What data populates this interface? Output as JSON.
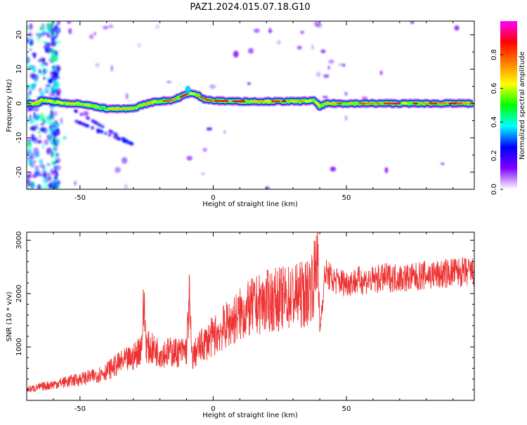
{
  "title": "PAZ1.2024.015.07.18.G10",
  "chart_data": [
    {
      "type": "heatmap",
      "xlabel": "Height of straight line (km)",
      "ylabel": "Frequency (Hz)",
      "xlim": [
        -70,
        98
      ],
      "ylim": [
        -25,
        24
      ],
      "xticks": [
        -50,
        0,
        50
      ],
      "yticks": [
        -20,
        -10,
        0,
        10,
        20
      ],
      "colorbar": {
        "label": "Normalized spectral amplitude",
        "range": [
          0,
          1
        ],
        "ticks": [
          "0.0",
          "0.2",
          "0.4",
          "0.6",
          "0.8"
        ],
        "colormap": [
          "#ffffff",
          "#8000ff",
          "#0000ff",
          "#00ffff",
          "#00ff00",
          "#ffff00",
          "#ff8000",
          "#ff0000",
          "#ff00ff"
        ]
      },
      "ridge": {
        "description_points": [
          {
            "x": -65,
            "freq": 1
          },
          {
            "x": -60,
            "freq": 0.5
          },
          {
            "x": -55,
            "freq": 0
          },
          {
            "x": -50,
            "freq": 0
          },
          {
            "x": -45,
            "freq": -0.8
          },
          {
            "x": -40,
            "freq": -1.5
          },
          {
            "x": -35,
            "freq": -1.6
          },
          {
            "x": -30,
            "freq": -1.5
          },
          {
            "x": -27,
            "freq": -0.5
          },
          {
            "x": -22,
            "freq": 0.5
          },
          {
            "x": -15,
            "freq": 1
          },
          {
            "x": -12,
            "freq": 2
          },
          {
            "x": -9,
            "freq": 3
          },
          {
            "x": -6,
            "freq": 2.5
          },
          {
            "x": -3,
            "freq": 1.2
          },
          {
            "x": 0,
            "freq": 0.8
          },
          {
            "x": 10,
            "freq": 0.6
          },
          {
            "x": 20,
            "freq": 0.6
          },
          {
            "x": 30,
            "freq": 0.6
          },
          {
            "x": 38,
            "freq": 0.8
          },
          {
            "x": 40,
            "freq": -0.8
          },
          {
            "x": 43,
            "freq": 0
          },
          {
            "x": 50,
            "freq": 0
          },
          {
            "x": 60,
            "freq": 0
          },
          {
            "x": 70,
            "freq": 0
          },
          {
            "x": 80,
            "freq": 0
          },
          {
            "x": 90,
            "freq": 0
          },
          {
            "x": 98,
            "freq": 0
          }
        ]
      }
    },
    {
      "type": "line",
      "xlabel": "Height of straight line (km)",
      "ylabel": "SNR (10 * v/v)",
      "xlim": [
        -70,
        98
      ],
      "ylim": [
        0,
        3150
      ],
      "xticks": [
        -50,
        0,
        50
      ],
      "yticks": [
        1000,
        2000,
        3000
      ],
      "color": "#ee3333",
      "series": [
        {
          "x": [
            -70,
            -65,
            -60,
            -55,
            -50,
            -45,
            -40,
            -35,
            -30,
            -27,
            -26,
            -25,
            -20,
            -15,
            -12,
            -10,
            -9,
            -8,
            -5,
            0,
            5,
            10,
            15,
            20,
            25,
            30,
            35,
            38,
            39,
            40,
            42,
            45,
            50,
            55,
            60,
            65,
            70,
            75,
            80,
            85,
            90,
            98
          ],
          "y": [
            200,
            250,
            300,
            350,
            400,
            450,
            550,
            700,
            800,
            1000,
            1800,
            1000,
            900,
            900,
            900,
            950,
            1900,
            800,
            1000,
            1200,
            1400,
            1600,
            1750,
            1850,
            1900,
            1950,
            2000,
            2300,
            2900,
            1300,
            2400,
            2250,
            2200,
            2250,
            2250,
            2300,
            2300,
            2300,
            2350,
            2350,
            2400,
            2400
          ]
        }
      ]
    }
  ]
}
